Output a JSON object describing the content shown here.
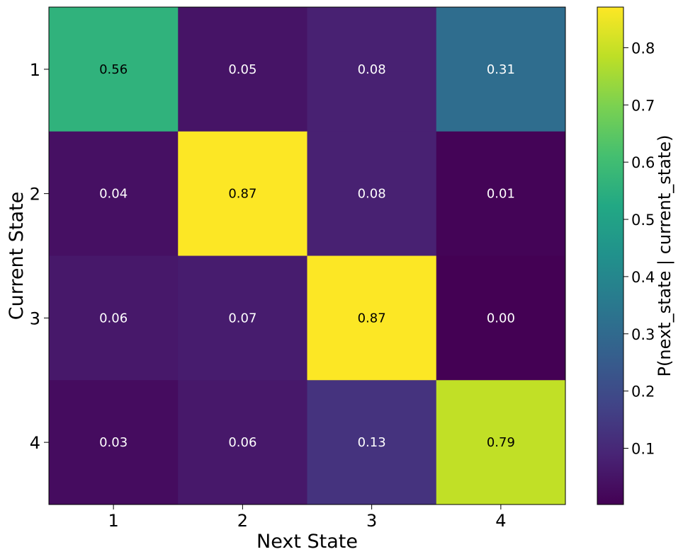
{
  "chart_data": {
    "type": "heatmap",
    "title": "",
    "xlabel": "Next State",
    "ylabel": "Current State",
    "x_categories": [
      "1",
      "2",
      "3",
      "4"
    ],
    "y_categories": [
      "1",
      "2",
      "3",
      "4"
    ],
    "values": [
      [
        0.56,
        0.05,
        0.08,
        0.31
      ],
      [
        0.04,
        0.87,
        0.08,
        0.01
      ],
      [
        0.06,
        0.07,
        0.87,
        0.0
      ],
      [
        0.03,
        0.06,
        0.13,
        0.79
      ]
    ],
    "value_labels": [
      [
        "0.56",
        "0.05",
        "0.08",
        "0.31"
      ],
      [
        "0.04",
        "0.87",
        "0.08",
        "0.01"
      ],
      [
        "0.06",
        "0.07",
        "0.87",
        "0.00"
      ],
      [
        "0.03",
        "0.06",
        "0.13",
        "0.79"
      ]
    ],
    "colorbar": {
      "label": "P(next_state | current_state)",
      "range": [
        0.0017,
        0.871
      ],
      "ticks": [
        0.1,
        0.2,
        0.3,
        0.4,
        0.5,
        0.6,
        0.7,
        0.8
      ],
      "tick_labels": [
        "0.1",
        "0.2",
        "0.3",
        "0.4",
        "0.5",
        "0.6",
        "0.7",
        "0.8"
      ]
    },
    "colormap": "viridis",
    "grid": false
  }
}
